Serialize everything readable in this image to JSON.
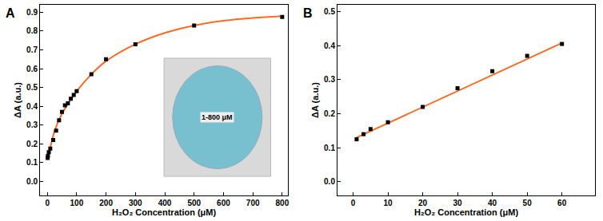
{
  "chart_data": [
    {
      "type": "scatter",
      "title": "A",
      "x_label": "H₂O₂ Concentration (μM)",
      "y_label": "ΔA (a.u.)",
      "annotations": [
        "1-800 μM"
      ],
      "xlim": [
        -25,
        820
      ],
      "xticks": [
        0,
        100,
        200,
        300,
        400,
        500,
        600,
        700,
        800
      ],
      "ylim": [
        -0.075,
        0.94
      ],
      "yticks": [
        {
          "value": 0,
          "label": "0.0"
        },
        0.1,
        0.2,
        0.3,
        0.4,
        0.5,
        0.6,
        0.7,
        0.8,
        0.9
      ],
      "grid": false,
      "series": [
        {
          "type": "line",
          "color": "#ff6a22",
          "line_style": "solid",
          "x": [
            1,
            10,
            25,
            50,
            100,
            150,
            200,
            300,
            400,
            500,
            600,
            700,
            800
          ],
          "values": [
            0.125,
            0.18,
            0.27,
            0.36,
            0.48,
            0.57,
            0.64,
            0.73,
            0.79,
            0.83,
            0.855,
            0.87,
            0.88
          ]
        },
        {
          "type": "scatter",
          "color": "#000000",
          "marker": "square",
          "x": [
            1,
            2,
            5,
            10,
            20,
            30,
            40,
            50,
            60,
            70,
            80,
            90,
            100,
            150,
            200,
            300,
            500,
            800
          ],
          "values": [
            0.125,
            0.135,
            0.155,
            0.175,
            0.22,
            0.27,
            0.325,
            0.37,
            0.405,
            0.415,
            0.44,
            0.46,
            0.48,
            0.57,
            0.65,
            0.73,
            0.83,
            0.875
          ]
        }
      ]
    },
    {
      "type": "scatter",
      "title": "B",
      "x_label": "H₂O₂ Concentration (μM)",
      "y_label": "ΔA (a.u.)",
      "xlim": [
        -4.5,
        69.5
      ],
      "xticks": [
        0,
        10,
        20,
        30,
        40,
        50,
        60
      ],
      "ylim": [
        -0.04,
        0.52
      ],
      "yticks": [
        {
          "value": 0,
          "label": "0.0"
        },
        0.1,
        0.2,
        0.3,
        0.4,
        0.5
      ],
      "grid": false,
      "series": [
        {
          "type": "line",
          "color": "#ff6a22",
          "line_style": "solid",
          "x": [
            1,
            60
          ],
          "values": [
            0.13,
            0.408
          ]
        },
        {
          "type": "scatter",
          "color": "#000000",
          "marker": "square",
          "x": [
            1,
            3,
            5,
            10,
            20,
            30,
            40,
            50,
            60
          ],
          "values": [
            0.125,
            0.14,
            0.155,
            0.175,
            0.22,
            0.275,
            0.325,
            0.37,
            0.405
          ]
        }
      ]
    }
  ]
}
